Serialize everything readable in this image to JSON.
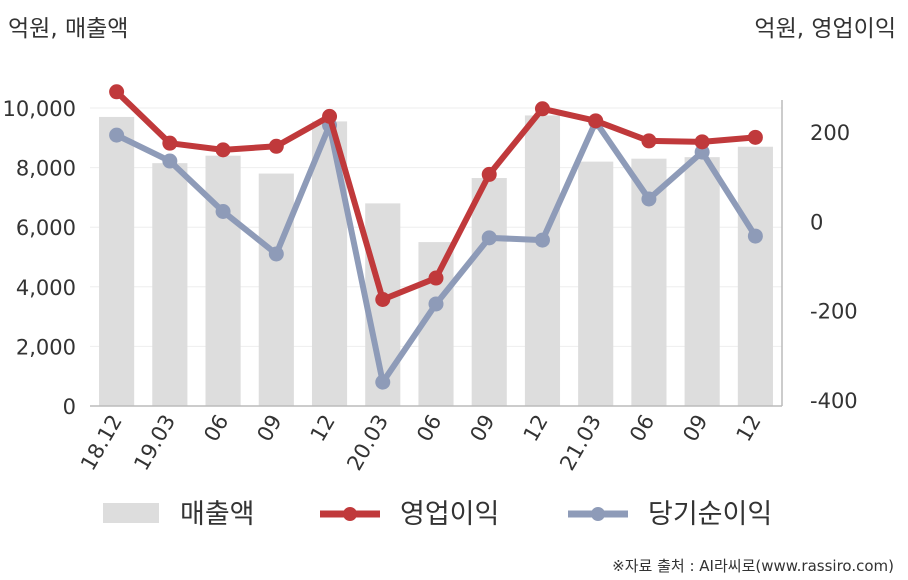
{
  "chart_data": {
    "type": "bar",
    "left_unit": "억원, 매출액",
    "right_unit": "억원, 영업이익",
    "categories": [
      "18.12",
      "19.03",
      "06",
      "09",
      "12",
      "20.03",
      "06",
      "09",
      "12",
      "21.03",
      "06",
      "09",
      "12"
    ],
    "y_left": {
      "min": 0,
      "max": 10000,
      "ticks": [
        "0",
        "2,000",
        "4,000",
        "6,000",
        "8,000",
        "10,000"
      ],
      "tick_values": [
        0,
        2000,
        4000,
        6000,
        8000,
        10000
      ]
    },
    "y_right": {
      "min": -400,
      "max": 200,
      "ticks": [
        "-400",
        "-200",
        "0",
        "200"
      ],
      "tick_values": [
        -400,
        -200,
        0,
        200
      ]
    },
    "series": [
      {
        "name": "매출액",
        "type": "bar",
        "axis": "left",
        "color": "#dddddd",
        "values": [
          9700,
          8150,
          8400,
          7800,
          9550,
          6800,
          5500,
          7650,
          9750,
          8200,
          8300,
          8350,
          8700
        ]
      },
      {
        "name": "영업이익",
        "type": "line",
        "axis": "right",
        "color": "#c0393b",
        "values": [
          290,
          175,
          160,
          168,
          235,
          -175,
          -127,
          105,
          252,
          225,
          180,
          178,
          188
        ]
      },
      {
        "name": "당기순이익",
        "type": "line",
        "axis": "right",
        "color": "#8e9bb8",
        "values": [
          193,
          135,
          22,
          -73,
          215,
          -360,
          -185,
          -37,
          -42,
          223,
          50,
          155,
          -33
        ]
      }
    ],
    "grid": true,
    "legend_position": "bottom"
  },
  "source_note": "※자료 출처 : AI라씨로(www.rassiro.com)"
}
